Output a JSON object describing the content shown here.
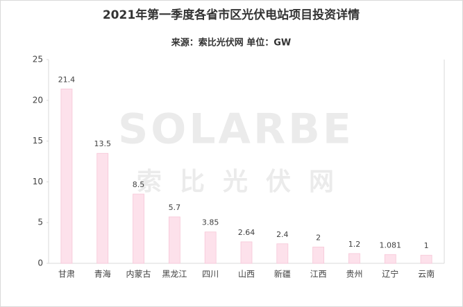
{
  "chart_data": {
    "type": "bar",
    "title": "2021年第一季度各省市区光伏电站项目投资详情",
    "subtitle": "来源：索比光伏网 单位：GW",
    "watermark": [
      "SOLARBE",
      "索比光伏网"
    ],
    "categories": [
      "甘肃",
      "青海",
      "内蒙古",
      "黑龙江",
      "四川",
      "山西",
      "新疆",
      "江西",
      "贵州",
      "辽宁",
      "云南"
    ],
    "values": [
      21.4,
      13.5,
      8.5,
      5.7,
      3.85,
      2.64,
      2.4,
      2,
      1.2,
      1.081,
      1
    ],
    "color": "#fde1eb",
    "ylim": [
      0,
      25
    ],
    "yticks": [
      0,
      5,
      10,
      15,
      20,
      25
    ],
    "grid": false
  }
}
